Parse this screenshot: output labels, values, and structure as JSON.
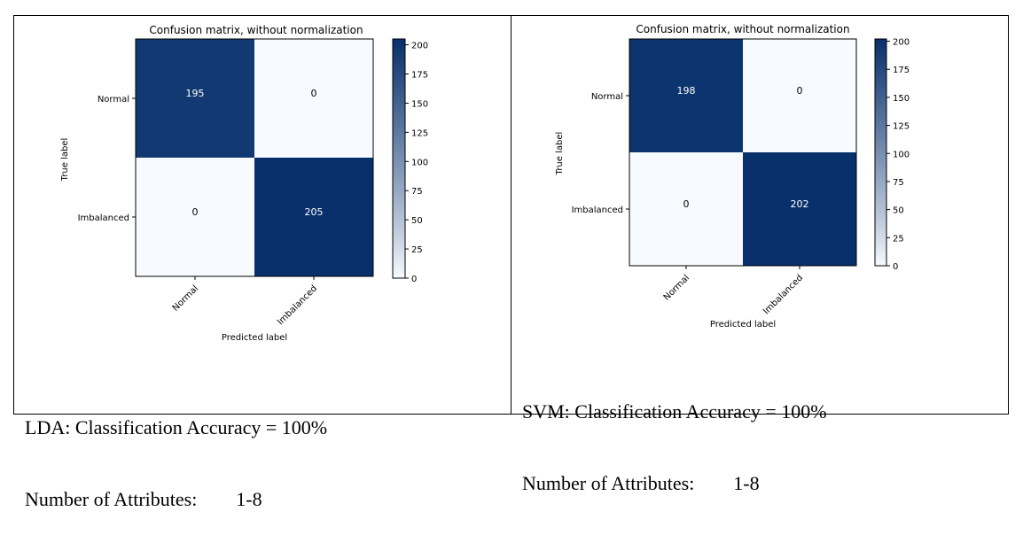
{
  "panels": [
    {
      "caption_line1": "LDA: Classification Accuracy = 100%",
      "caption_line2": "Number of Attributes:        1-8"
    },
    {
      "caption_line1": "SVM: Classification Accuracy = 100%",
      "caption_line2": "Number of Attributes:        1-8"
    }
  ],
  "colors": {
    "low": "#f7fbff",
    "high": "#08306b"
  },
  "chart_data": [
    {
      "type": "heatmap",
      "title": "Confusion matrix, without normalization",
      "xlabel": "Predicted label",
      "ylabel": "True label",
      "x_categories": [
        "Normal",
        "Imbalanced"
      ],
      "y_categories": [
        "Normal",
        "Imbalanced"
      ],
      "values": [
        [
          195,
          0
        ],
        [
          0,
          205
        ]
      ],
      "colorbar": {
        "min": 0,
        "max": 205,
        "ticks": [
          0,
          25,
          50,
          75,
          100,
          125,
          150,
          175,
          200
        ]
      }
    },
    {
      "type": "heatmap",
      "title": "Confusion matrix, without normalization",
      "xlabel": "Predicted label",
      "ylabel": "True label",
      "x_categories": [
        "Normal",
        "Imbalanced"
      ],
      "y_categories": [
        "Normal",
        "Imbalanced"
      ],
      "values": [
        [
          198,
          0
        ],
        [
          0,
          202
        ]
      ],
      "colorbar": {
        "min": 0,
        "max": 202,
        "ticks": [
          0,
          25,
          50,
          75,
          100,
          125,
          150,
          175,
          200
        ]
      }
    }
  ]
}
